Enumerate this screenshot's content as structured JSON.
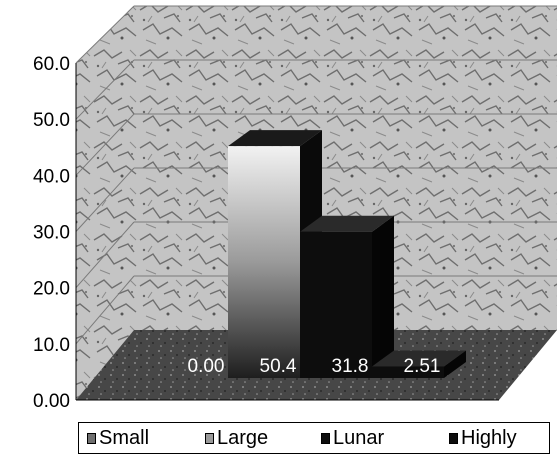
{
  "chart_data": {
    "type": "bar",
    "title": "",
    "xlabel": "",
    "ylabel": "",
    "categories": [
      "Small",
      "Large",
      "Lunar",
      "Highly"
    ],
    "values": [
      0.0,
      50.4,
      31.8,
      2.51
    ],
    "data_labels": [
      "0.00",
      "50.4",
      "31.8",
      "2.51"
    ],
    "ylim": [
      0,
      60
    ],
    "y_ticks": [
      "0.00",
      "10.0",
      "20.0",
      "30.0",
      "40.0",
      "50.0",
      "60.0"
    ],
    "grid": true,
    "three_d": true,
    "legend_position": "bottom",
    "series": [
      {
        "name": "Small",
        "color": "#6f6f6f"
      },
      {
        "name": "Large",
        "color": "#9a9a9a"
      },
      {
        "name": "Lunar",
        "color": "#0d0d0d"
      },
      {
        "name": "Highly",
        "color": "#0d0d0d"
      }
    ],
    "wall_color": "#b9b9b9",
    "floor_color": "#4a4a4a"
  }
}
